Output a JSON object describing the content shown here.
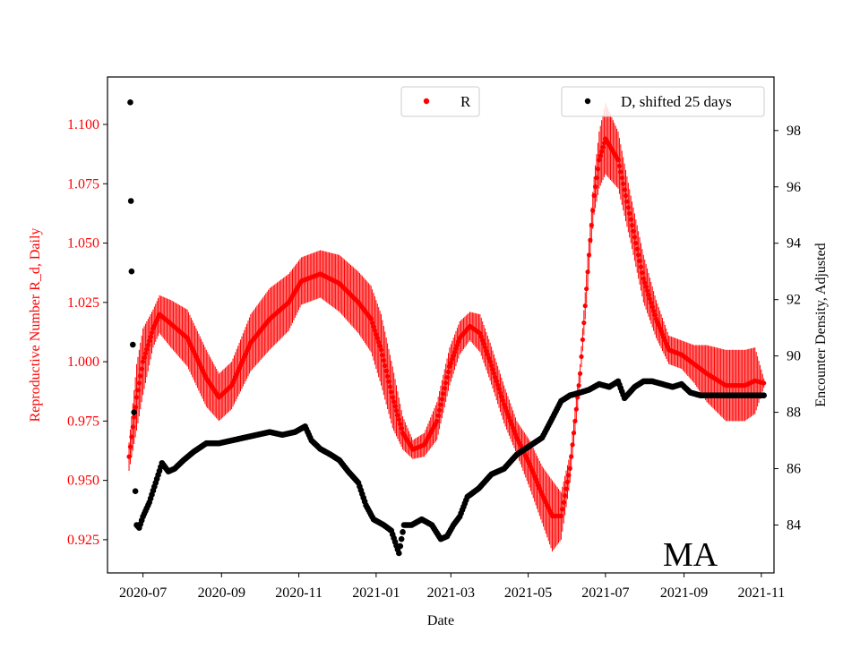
{
  "chart_data": {
    "type": "scatter",
    "title": "",
    "region_label": "MA",
    "xlabel": "Date",
    "ylabel_left": "Reproductive Number R_d, Daily",
    "ylabel_right": "Encounter Density, Adjusted",
    "x_ticks": [
      "2020-07",
      "2020-09",
      "2020-11",
      "2021-01",
      "2021-03",
      "2021-05",
      "2021-07",
      "2021-09",
      "2021-11"
    ],
    "x_range_days": [
      -28,
      498
    ],
    "y_left_range": [
      0.911,
      1.12
    ],
    "y_left_ticks": [
      "0.925",
      "0.950",
      "0.975",
      "1.000",
      "1.025",
      "1.050",
      "1.075",
      "1.100"
    ],
    "y_right_range": [
      82.3,
      99.9
    ],
    "y_right_ticks": [
      "84",
      "86",
      "88",
      "90",
      "92",
      "94",
      "96",
      "98"
    ],
    "legend": [
      {
        "label": "R",
        "color": "#ff0000",
        "location": "top-center"
      },
      {
        "label": "D, shifted 25 days",
        "color": "#000000",
        "location": "top-right"
      }
    ],
    "series_R": {
      "name": "R",
      "color": "#ff0000",
      "axis": "left",
      "anchors_day_value_err": [
        [
          -11,
          0.96,
          0.006
        ],
        [
          -5,
          0.985,
          0.014
        ],
        [
          0,
          1.0,
          0.014
        ],
        [
          8,
          1.014,
          0.008
        ],
        [
          13,
          1.02,
          0.008
        ],
        [
          22,
          1.016,
          0.01
        ],
        [
          35,
          1.01,
          0.012
        ],
        [
          50,
          0.993,
          0.012
        ],
        [
          60,
          0.985,
          0.01
        ],
        [
          70,
          0.99,
          0.01
        ],
        [
          85,
          1.008,
          0.012
        ],
        [
          100,
          1.018,
          0.013
        ],
        [
          115,
          1.025,
          0.012
        ],
        [
          125,
          1.034,
          0.01
        ],
        [
          140,
          1.037,
          0.01
        ],
        [
          155,
          1.033,
          0.012
        ],
        [
          170,
          1.025,
          0.013
        ],
        [
          180,
          1.018,
          0.014
        ],
        [
          188,
          1.005,
          0.015
        ],
        [
          197,
          0.985,
          0.013
        ],
        [
          205,
          0.97,
          0.007
        ],
        [
          213,
          0.963,
          0.004
        ],
        [
          222,
          0.965,
          0.005
        ],
        [
          232,
          0.975,
          0.008
        ],
        [
          242,
          0.998,
          0.008
        ],
        [
          250,
          1.01,
          0.007
        ],
        [
          258,
          1.015,
          0.006
        ],
        [
          266,
          1.012,
          0.008
        ],
        [
          274,
          1.0,
          0.008
        ],
        [
          285,
          0.982,
          0.008
        ],
        [
          295,
          0.968,
          0.007
        ],
        [
          305,
          0.957,
          0.01
        ],
        [
          315,
          0.944,
          0.012
        ],
        [
          323,
          0.935,
          0.015
        ],
        [
          330,
          0.935,
          0.01
        ],
        [
          337,
          0.955,
          0.006
        ],
        [
          345,
          0.995,
          0.004
        ],
        [
          352,
          1.045,
          0.007
        ],
        [
          356,
          1.07,
          0.008
        ],
        [
          360,
          1.085,
          0.012
        ],
        [
          365,
          1.094,
          0.015
        ],
        [
          375,
          1.085,
          0.012
        ],
        [
          385,
          1.06,
          0.01
        ],
        [
          395,
          1.035,
          0.01
        ],
        [
          405,
          1.018,
          0.008
        ],
        [
          415,
          1.005,
          0.006
        ],
        [
          425,
          1.003,
          0.006
        ],
        [
          435,
          0.999,
          0.008
        ],
        [
          445,
          0.995,
          0.012
        ],
        [
          460,
          0.99,
          0.015
        ],
        [
          475,
          0.99,
          0.015
        ],
        [
          483,
          0.992,
          0.014
        ],
        [
          490,
          0.991,
          0.002
        ]
      ]
    },
    "series_D": {
      "name": "D, shifted 25 days",
      "color": "#000000",
      "axis": "right",
      "early_points_day_value": [
        [
          -10,
          99.0
        ],
        [
          -9.5,
          95.5
        ],
        [
          -9,
          93.0
        ],
        [
          -8,
          90.4
        ],
        [
          -7,
          88.0
        ],
        [
          -6,
          85.2
        ]
      ],
      "anchors_day_value": [
        [
          -5,
          84.0
        ],
        [
          -3,
          83.9
        ],
        [
          0,
          84.3
        ],
        [
          5,
          84.8
        ],
        [
          10,
          85.5
        ],
        [
          15,
          86.2
        ],
        [
          20,
          85.9
        ],
        [
          25,
          86.0
        ],
        [
          32,
          86.3
        ],
        [
          40,
          86.6
        ],
        [
          50,
          86.9
        ],
        [
          60,
          86.9
        ],
        [
          70,
          87.0
        ],
        [
          80,
          87.1
        ],
        [
          90,
          87.2
        ],
        [
          100,
          87.3
        ],
        [
          110,
          87.2
        ],
        [
          120,
          87.3
        ],
        [
          128,
          87.5
        ],
        [
          133,
          87.0
        ],
        [
          140,
          86.7
        ],
        [
          148,
          86.5
        ],
        [
          155,
          86.3
        ],
        [
          162,
          85.9
        ],
        [
          170,
          85.5
        ],
        [
          176,
          84.7
        ],
        [
          182,
          84.2
        ],
        [
          190,
          84.0
        ],
        [
          196,
          83.8
        ],
        [
          202,
          83.0
        ],
        [
          206,
          84.0
        ],
        [
          212,
          84.0
        ],
        [
          220,
          84.2
        ],
        [
          228,
          84.0
        ],
        [
          235,
          83.5
        ],
        [
          240,
          83.6
        ],
        [
          245,
          84.0
        ],
        [
          250,
          84.3
        ],
        [
          256,
          85.0
        ],
        [
          265,
          85.3
        ],
        [
          275,
          85.8
        ],
        [
          285,
          86.0
        ],
        [
          295,
          86.5
        ],
        [
          305,
          86.8
        ],
        [
          315,
          87.1
        ],
        [
          322,
          87.7
        ],
        [
          330,
          88.4
        ],
        [
          337,
          88.6
        ],
        [
          345,
          88.7
        ],
        [
          352,
          88.8
        ],
        [
          360,
          89.0
        ],
        [
          368,
          88.9
        ],
        [
          375,
          89.1
        ],
        [
          380,
          88.5
        ],
        [
          388,
          88.9
        ],
        [
          395,
          89.1
        ],
        [
          402,
          89.1
        ],
        [
          410,
          89.0
        ],
        [
          418,
          88.9
        ],
        [
          425,
          89.0
        ],
        [
          432,
          88.7
        ],
        [
          440,
          88.6
        ],
        [
          448,
          88.6
        ],
        [
          460,
          88.6
        ],
        [
          475,
          88.6
        ],
        [
          490,
          88.6
        ]
      ]
    }
  }
}
